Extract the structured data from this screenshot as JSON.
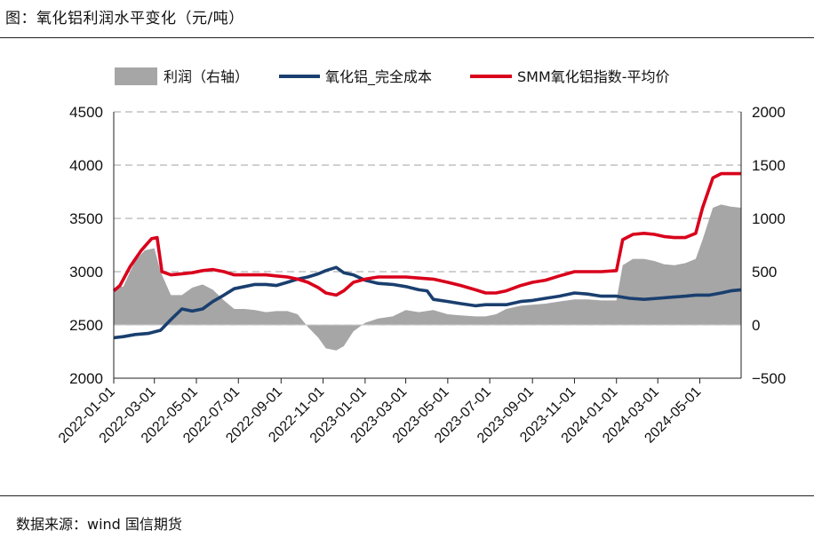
{
  "figure_title": "图：氧化铝利润水平变化（元/吨）",
  "source": "数据来源：wind 国信期货",
  "colors": {
    "profit": "#a6a6a6",
    "cost": "#1a3f6f",
    "price": "#d9001b",
    "grid": "#b3b3b3"
  },
  "chart_data": {
    "type": "line",
    "title": "",
    "left_axis": {
      "ylim": [
        2000,
        4500
      ],
      "ticks": [
        "2000",
        "2500",
        "3000",
        "3500",
        "4000",
        "4500"
      ]
    },
    "right_axis": {
      "ylim": [
        -500,
        2000
      ],
      "ticks": [
        "−500",
        "0",
        "500",
        "1000",
        "1500",
        "2000"
      ]
    },
    "x_ticks": [
      "2022-01-01",
      "2022-03-01",
      "2022-05-01",
      "2022-07-01",
      "2022-09-01",
      "2022-11-01",
      "2023-01-01",
      "2023-03-01",
      "2023-05-01",
      "2023-07-01",
      "2023-09-01",
      "2023-11-01",
      "2024-01-01",
      "2024-03-01",
      "2024-05-01"
    ],
    "x_range": [
      "2022-01-01",
      "2024-06-30"
    ],
    "grid": "horizontal dashed",
    "legend_position": "top",
    "series": [
      {
        "name": "利润（右轴）",
        "type": "area",
        "axis": "right",
        "points": [
          [
            "2022-01-01",
            350
          ],
          [
            "2022-01-15",
            360
          ],
          [
            "2022-02-01",
            600
          ],
          [
            "2022-02-15",
            700
          ],
          [
            "2022-03-01",
            720
          ],
          [
            "2022-03-10",
            500
          ],
          [
            "2022-03-25",
            280
          ],
          [
            "2022-04-10",
            280
          ],
          [
            "2022-04-25",
            350
          ],
          [
            "2022-05-10",
            380
          ],
          [
            "2022-05-25",
            330
          ],
          [
            "2022-06-10",
            230
          ],
          [
            "2022-06-25",
            150
          ],
          [
            "2022-07-10",
            150
          ],
          [
            "2022-07-25",
            140
          ],
          [
            "2022-08-10",
            120
          ],
          [
            "2022-08-25",
            130
          ],
          [
            "2022-09-10",
            130
          ],
          [
            "2022-09-25",
            100
          ],
          [
            "2022-10-10",
            -20
          ],
          [
            "2022-10-25",
            -120
          ],
          [
            "2022-11-05",
            -220
          ],
          [
            "2022-11-20",
            -240
          ],
          [
            "2022-12-01",
            -200
          ],
          [
            "2022-12-15",
            -60
          ],
          [
            "2023-01-01",
            20
          ],
          [
            "2023-01-20",
            60
          ],
          [
            "2023-02-10",
            80
          ],
          [
            "2023-03-01",
            140
          ],
          [
            "2023-03-20",
            120
          ],
          [
            "2023-04-10",
            140
          ],
          [
            "2023-05-01",
            100
          ],
          [
            "2023-05-20",
            90
          ],
          [
            "2023-06-10",
            80
          ],
          [
            "2023-06-25",
            80
          ],
          [
            "2023-07-10",
            100
          ],
          [
            "2023-07-25",
            150
          ],
          [
            "2023-08-15",
            180
          ],
          [
            "2023-09-01",
            190
          ],
          [
            "2023-09-20",
            200
          ],
          [
            "2023-10-10",
            220
          ],
          [
            "2023-11-01",
            240
          ],
          [
            "2023-11-20",
            240
          ],
          [
            "2023-12-10",
            230
          ],
          [
            "2024-01-01",
            230
          ],
          [
            "2024-01-10",
            560
          ],
          [
            "2024-01-25",
            620
          ],
          [
            "2024-02-10",
            620
          ],
          [
            "2024-02-25",
            600
          ],
          [
            "2024-03-10",
            570
          ],
          [
            "2024-03-25",
            560
          ],
          [
            "2024-04-10",
            580
          ],
          [
            "2024-04-25",
            620
          ],
          [
            "2024-05-05",
            800
          ],
          [
            "2024-05-20",
            1100
          ],
          [
            "2024-06-01",
            1130
          ],
          [
            "2024-06-15",
            1110
          ],
          [
            "2024-06-30",
            1100
          ]
        ]
      },
      {
        "name": "氧化铝_完全成本",
        "type": "line",
        "axis": "left",
        "points": [
          [
            "2022-01-01",
            2380
          ],
          [
            "2022-01-15",
            2390
          ],
          [
            "2022-02-01",
            2410
          ],
          [
            "2022-02-20",
            2420
          ],
          [
            "2022-03-10",
            2450
          ],
          [
            "2022-03-25",
            2550
          ],
          [
            "2022-04-10",
            2650
          ],
          [
            "2022-04-25",
            2630
          ],
          [
            "2022-05-10",
            2650
          ],
          [
            "2022-05-25",
            2720
          ],
          [
            "2022-06-10",
            2780
          ],
          [
            "2022-06-25",
            2840
          ],
          [
            "2022-07-10",
            2860
          ],
          [
            "2022-07-25",
            2880
          ],
          [
            "2022-08-10",
            2880
          ],
          [
            "2022-08-25",
            2870
          ],
          [
            "2022-09-10",
            2900
          ],
          [
            "2022-09-25",
            2930
          ],
          [
            "2022-10-10",
            2950
          ],
          [
            "2022-10-25",
            2980
          ],
          [
            "2022-11-05",
            3010
          ],
          [
            "2022-11-20",
            3040
          ],
          [
            "2022-12-01",
            2990
          ],
          [
            "2022-12-15",
            2970
          ],
          [
            "2023-01-01",
            2920
          ],
          [
            "2023-01-20",
            2890
          ],
          [
            "2023-02-10",
            2880
          ],
          [
            "2023-03-01",
            2860
          ],
          [
            "2023-03-20",
            2830
          ],
          [
            "2023-04-01",
            2820
          ],
          [
            "2023-04-10",
            2740
          ],
          [
            "2023-05-01",
            2720
          ],
          [
            "2023-05-20",
            2700
          ],
          [
            "2023-06-10",
            2680
          ],
          [
            "2023-06-25",
            2690
          ],
          [
            "2023-07-10",
            2690
          ],
          [
            "2023-07-25",
            2690
          ],
          [
            "2023-08-15",
            2720
          ],
          [
            "2023-09-01",
            2730
          ],
          [
            "2023-09-20",
            2750
          ],
          [
            "2023-10-10",
            2770
          ],
          [
            "2023-11-01",
            2800
          ],
          [
            "2023-11-20",
            2790
          ],
          [
            "2023-12-10",
            2770
          ],
          [
            "2024-01-01",
            2770
          ],
          [
            "2024-01-20",
            2750
          ],
          [
            "2024-02-10",
            2740
          ],
          [
            "2024-03-01",
            2750
          ],
          [
            "2024-03-20",
            2760
          ],
          [
            "2024-04-10",
            2770
          ],
          [
            "2024-04-25",
            2780
          ],
          [
            "2024-05-15",
            2780
          ],
          [
            "2024-06-01",
            2800
          ],
          [
            "2024-06-15",
            2820
          ],
          [
            "2024-06-30",
            2830
          ]
        ]
      },
      {
        "name": "SMM氧化铝指数-平均价",
        "type": "line",
        "axis": "left",
        "points": [
          [
            "2022-01-01",
            2820
          ],
          [
            "2022-01-10",
            2870
          ],
          [
            "2022-01-25",
            3050
          ],
          [
            "2022-02-10",
            3200
          ],
          [
            "2022-02-25",
            3310
          ],
          [
            "2022-03-05",
            3320
          ],
          [
            "2022-03-12",
            3000
          ],
          [
            "2022-03-25",
            2970
          ],
          [
            "2022-04-10",
            2980
          ],
          [
            "2022-04-25",
            2990
          ],
          [
            "2022-05-10",
            3010
          ],
          [
            "2022-05-25",
            3020
          ],
          [
            "2022-06-10",
            3000
          ],
          [
            "2022-06-25",
            2970
          ],
          [
            "2022-07-10",
            2970
          ],
          [
            "2022-07-25",
            2970
          ],
          [
            "2022-08-10",
            2970
          ],
          [
            "2022-08-25",
            2960
          ],
          [
            "2022-09-10",
            2950
          ],
          [
            "2022-09-25",
            2930
          ],
          [
            "2022-10-10",
            2900
          ],
          [
            "2022-10-25",
            2850
          ],
          [
            "2022-11-05",
            2800
          ],
          [
            "2022-11-20",
            2780
          ],
          [
            "2022-12-01",
            2820
          ],
          [
            "2022-12-15",
            2900
          ],
          [
            "2023-01-01",
            2930
          ],
          [
            "2023-01-20",
            2950
          ],
          [
            "2023-02-10",
            2950
          ],
          [
            "2023-03-01",
            2950
          ],
          [
            "2023-03-20",
            2940
          ],
          [
            "2023-04-10",
            2930
          ],
          [
            "2023-05-01",
            2900
          ],
          [
            "2023-05-20",
            2870
          ],
          [
            "2023-06-10",
            2830
          ],
          [
            "2023-06-25",
            2800
          ],
          [
            "2023-07-10",
            2800
          ],
          [
            "2023-07-25",
            2820
          ],
          [
            "2023-08-15",
            2870
          ],
          [
            "2023-09-01",
            2900
          ],
          [
            "2023-09-20",
            2920
          ],
          [
            "2023-10-10",
            2960
          ],
          [
            "2023-11-01",
            3000
          ],
          [
            "2023-11-20",
            3000
          ],
          [
            "2023-12-10",
            3000
          ],
          [
            "2024-01-01",
            3010
          ],
          [
            "2024-01-10",
            3300
          ],
          [
            "2024-01-25",
            3350
          ],
          [
            "2024-02-10",
            3360
          ],
          [
            "2024-02-25",
            3350
          ],
          [
            "2024-03-10",
            3330
          ],
          [
            "2024-03-25",
            3320
          ],
          [
            "2024-04-10",
            3320
          ],
          [
            "2024-04-25",
            3360
          ],
          [
            "2024-05-05",
            3600
          ],
          [
            "2024-05-20",
            3880
          ],
          [
            "2024-06-01",
            3920
          ],
          [
            "2024-06-15",
            3920
          ],
          [
            "2024-06-30",
            3920
          ]
        ]
      }
    ]
  }
}
